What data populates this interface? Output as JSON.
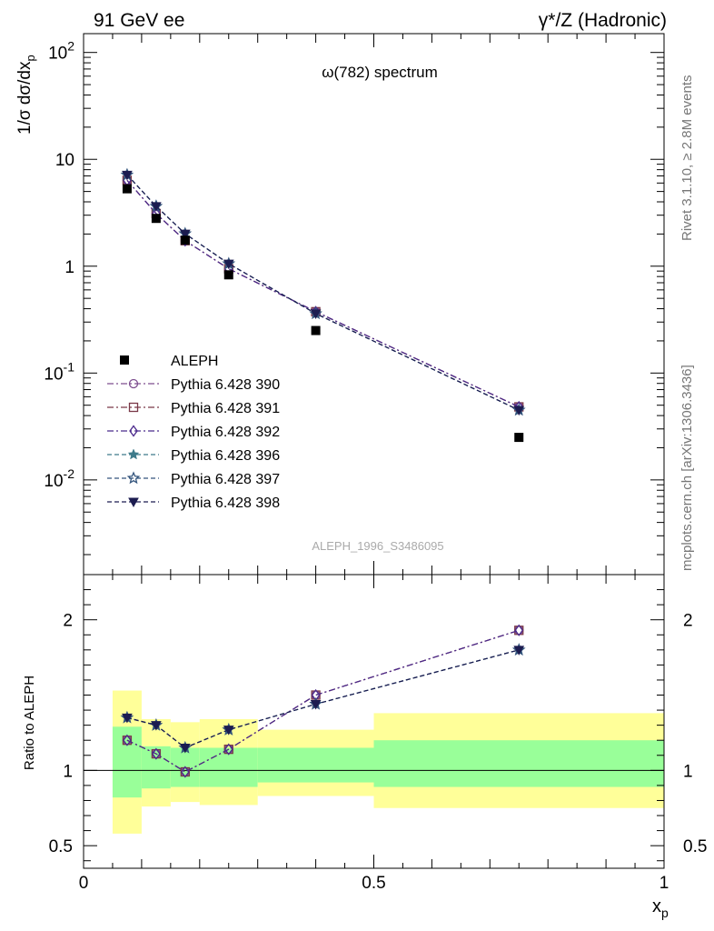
{
  "header": {
    "left": "91 GeV ee",
    "right": "γ*/Z (Hadronic)"
  },
  "side_labels": {
    "rivet": "Rivet 3.1.10, ≥ 2.8M events",
    "mcplots": "mcplots.cern.ch [arXiv:1306.3436]"
  },
  "chart_data": {
    "type": "scatter",
    "title": "ω(782) spectrum",
    "watermark": "ALEPH_1996_S3486095",
    "xlabel": "x",
    "xlabel_sub": "p",
    "ylabel": "1/σ dσ/dx",
    "ylabel_sub": "p",
    "ratio_ylabel": "Ratio to ALEPH",
    "xlim": [
      0,
      1
    ],
    "ylim": [
      0.0013,
      150
    ],
    "yscale": "log",
    "ratio_ylim": [
      0.35,
      2.3
    ],
    "x_ticks": [
      "0",
      "0.5",
      "1"
    ],
    "y_ticks": [
      "10^2",
      "10",
      "1",
      "10^-1",
      "10^-2"
    ],
    "ratio_ticks": [
      "2",
      "1",
      "0.5"
    ],
    "legend_position": "bottom-left of upper panel",
    "data": {
      "name": "ALEPH",
      "x": [
        0.075,
        0.125,
        0.175,
        0.25,
        0.4,
        0.75
      ],
      "y": [
        5.3,
        2.8,
        1.75,
        0.83,
        0.25,
        0.025
      ],
      "bins": [
        [
          0.05,
          0.1
        ],
        [
          0.1,
          0.15
        ],
        [
          0.15,
          0.2
        ],
        [
          0.2,
          0.3
        ],
        [
          0.3,
          0.5
        ],
        [
          0.5,
          1.0
        ]
      ],
      "band_stat": [
        [
          0.82,
          1.29
        ],
        [
          0.88,
          1.16
        ],
        [
          0.89,
          1.15
        ],
        [
          0.89,
          1.15
        ],
        [
          0.92,
          1.15
        ],
        [
          0.89,
          1.2
        ]
      ],
      "band_total": [
        [
          0.58,
          1.53
        ],
        [
          0.76,
          1.34
        ],
        [
          0.79,
          1.32
        ],
        [
          0.77,
          1.34
        ],
        [
          0.83,
          1.27
        ],
        [
          0.75,
          1.38
        ]
      ]
    },
    "series": [
      {
        "name": "Pythia 6.428 390",
        "color": "#7d4e8f",
        "marker": "circle",
        "dash": "7,3,2,3",
        "ratio": [
          1.2,
          1.11,
          0.99,
          1.14,
          1.5,
          1.93
        ]
      },
      {
        "name": "Pythia 6.428 391",
        "color": "#7a3848",
        "marker": "square",
        "dash": "7,3,2,3",
        "ratio": [
          1.2,
          1.11,
          0.99,
          1.14,
          1.5,
          1.93
        ]
      },
      {
        "name": "Pythia 6.428 392",
        "color": "#4b2a8c",
        "marker": "diamond",
        "dash": "7,3,2,3",
        "ratio": [
          1.2,
          1.11,
          0.99,
          1.14,
          1.5,
          1.93
        ]
      },
      {
        "name": "Pythia 6.428 396",
        "color": "#3d7a8a",
        "marker": "star",
        "dash": "5,3",
        "ratio": [
          1.35,
          1.3,
          1.15,
          1.27,
          1.44,
          1.8
        ]
      },
      {
        "name": "Pythia 6.428 397",
        "color": "#34557d",
        "marker": "star-open",
        "dash": "5,3",
        "ratio": [
          1.35,
          1.3,
          1.15,
          1.27,
          1.44,
          1.8
        ]
      },
      {
        "name": "Pythia 6.428 398",
        "color": "#1c1c50",
        "marker": "triangle-down",
        "dash": "5,3",
        "ratio": [
          1.35,
          1.3,
          1.15,
          1.27,
          1.44,
          1.8
        ]
      }
    ],
    "colors": {
      "band_inner": "#99ff99",
      "band_outer": "#ffff99",
      "data_marker": "#000000"
    }
  }
}
